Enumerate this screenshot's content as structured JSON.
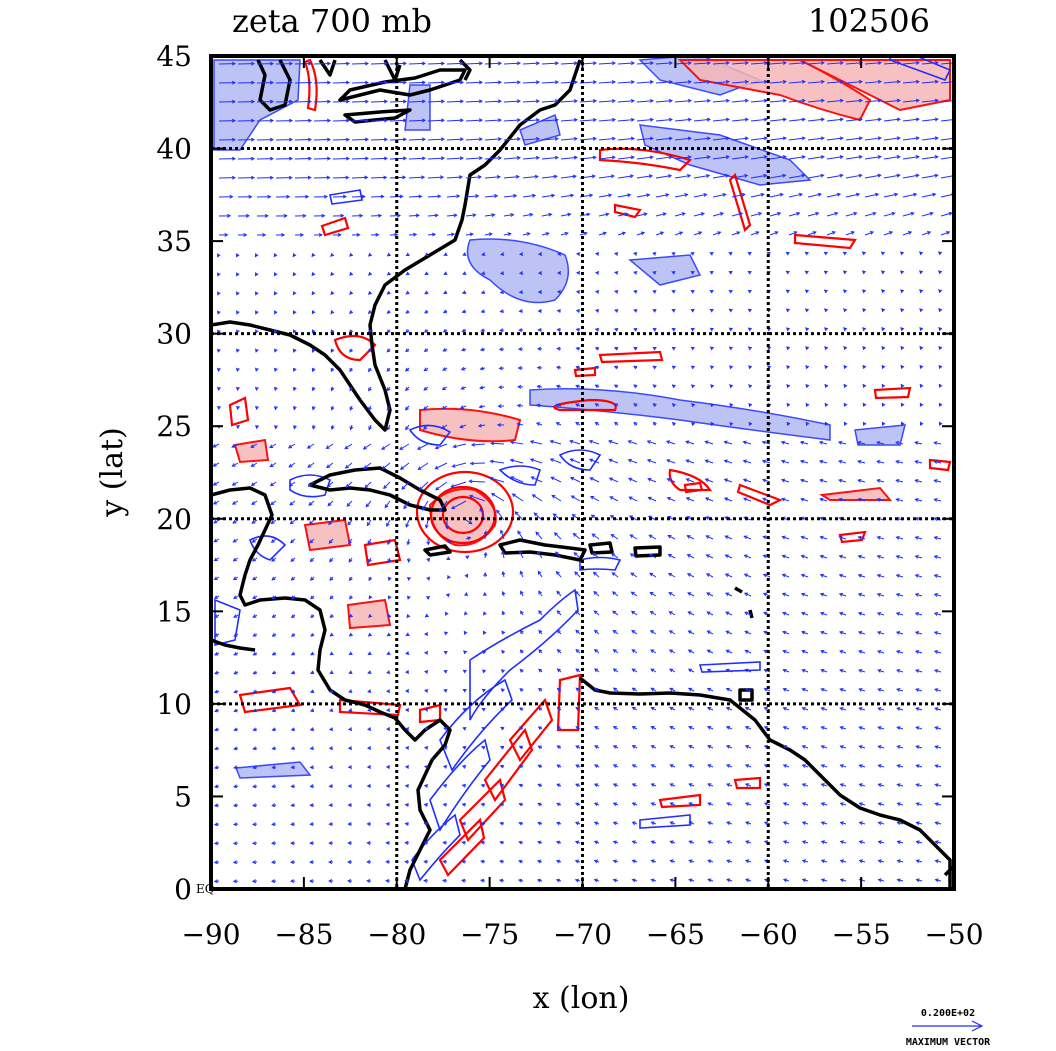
{
  "chart_data": {
    "type": "map",
    "title_left": "zeta 700 mb",
    "title_right": "102506",
    "xlabel": "x (lon)",
    "ylabel": "y (lat)",
    "xlim": [
      -90,
      -50
    ],
    "ylim": [
      0,
      45
    ],
    "xticks": [
      -90,
      -85,
      -80,
      -75,
      -70,
      -65,
      -60,
      -55,
      -50
    ],
    "xtick_labels": [
      "−90",
      "−85",
      "−80",
      "−75",
      "−70",
      "−65",
      "−60",
      "−55",
      "−50"
    ],
    "yticks": [
      0,
      5,
      10,
      15,
      20,
      25,
      30,
      35,
      40,
      45
    ],
    "ytick_labels": [
      "0",
      "5",
      "10",
      "15",
      "20",
      "25",
      "30",
      "35",
      "40",
      "45"
    ],
    "eq_label": "EQ",
    "grid_lon": [
      -80,
      -70,
      -60
    ],
    "grid_lat": [
      10,
      20,
      30,
      40
    ],
    "grid": true,
    "vortex_center": {
      "lon": -76,
      "lat": 20.3
    },
    "positive_vorticity_color": "#ff0000",
    "positive_fill_color": "#f5b8b8",
    "negative_vorticity_color": "#1f2fff",
    "negative_fill_color": "#8c96f0",
    "vector_color": "#1f2fff",
    "coast_color": "#000000",
    "ref_vector_value": "0.200E+02",
    "ref_vector_label": "MAXIMUM VECTOR"
  }
}
